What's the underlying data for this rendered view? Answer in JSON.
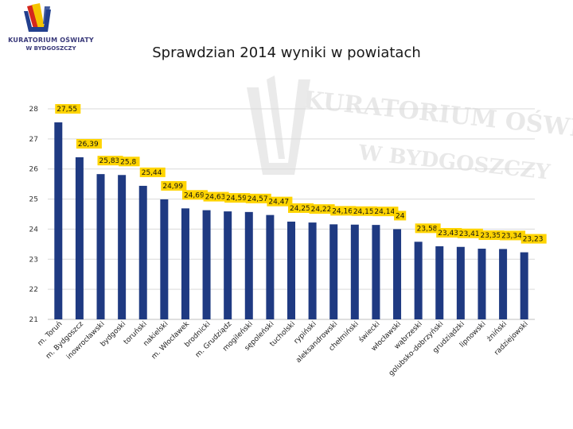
{
  "logo": {
    "line1": "KURATORIUM OŚWIATY",
    "line2": "W BYDGOSZCZY"
  },
  "watermark": {
    "line1": "KURATORIUM OŚWIATY",
    "line2": "W BYDGOSZCZY"
  },
  "colors": {
    "bar": "#1f3a82",
    "bar_label_bg": "#ffd400",
    "gridline": "#d9d9d9",
    "logo_blue": "#223f8e",
    "logo_yellow": "#f5c400",
    "logo_red": "#d4271d"
  },
  "chart_data": {
    "type": "bar",
    "title": "Sprawdzian 2014  wyniki w powiatach",
    "xlabel": "",
    "ylabel": "",
    "ylim": [
      21,
      28
    ],
    "yticks": [
      21,
      22,
      23,
      24,
      25,
      26,
      27,
      28
    ],
    "grid": true,
    "categories": [
      "m. Toruń",
      "m. Bydgoszcz",
      "inowrocławski",
      "bydgoski",
      "toruński",
      "nakielski",
      "m. Włocławek",
      "brodnicki",
      "m. Grudziądz",
      "mogileński",
      "sępoleński",
      "tucholski",
      "rypiński",
      "aleksandrowski",
      "chełmiński",
      "świecki",
      "włocławski",
      "wąbrzeski",
      "golubsko-dobrzyński",
      "grudziądzki",
      "lipnowski",
      "żniński",
      "radziejowski"
    ],
    "values": [
      27.55,
      26.39,
      25.83,
      25.8,
      25.44,
      24.99,
      24.69,
      24.63,
      24.59,
      24.57,
      24.47,
      24.25,
      24.22,
      24.16,
      24.15,
      24.14,
      24.0,
      23.58,
      23.43,
      23.41,
      23.35,
      23.34,
      23.23
    ],
    "data_labels": [
      "27,55",
      "26,39",
      "25,83",
      "25,8",
      "25,44",
      "24,99",
      "24,69",
      "24,63",
      "24,59",
      "24,57",
      "24,47",
      "24,25",
      "24,22",
      "24,16",
      "24,15",
      "24,14",
      "24",
      "23,58",
      "23,43",
      "23,41",
      "23,35",
      "23,34",
      "23,23"
    ]
  }
}
